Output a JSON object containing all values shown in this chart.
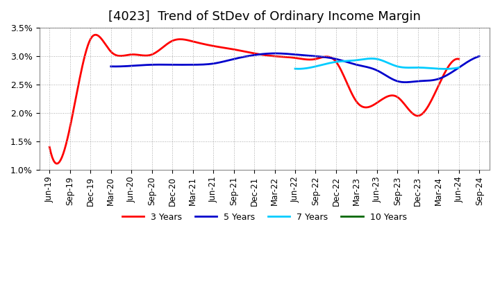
{
  "title": "[4023]  Trend of StDev of Ordinary Income Margin",
  "ylim": [
    0.01,
    0.035
  ],
  "yticks": [
    0.01,
    0.015,
    0.02,
    0.025,
    0.03,
    0.035
  ],
  "ytick_labels": [
    "1.0%",
    "1.5%",
    "2.0%",
    "2.5%",
    "3.0%",
    "3.5%"
  ],
  "x_labels": [
    "Jun-19",
    "Sep-19",
    "Dec-19",
    "Mar-20",
    "Jun-20",
    "Sep-20",
    "Dec-20",
    "Mar-21",
    "Jun-21",
    "Sep-21",
    "Dec-21",
    "Mar-22",
    "Jun-22",
    "Sep-22",
    "Dec-22",
    "Mar-23",
    "Jun-23",
    "Sep-23",
    "Dec-23",
    "Mar-24",
    "Jun-24",
    "Sep-24"
  ],
  "series": {
    "3 Years": {
      "color": "#ff0000",
      "values": [
        0.014,
        0.0175,
        0.033,
        0.0308,
        0.0303,
        0.0303,
        0.0327,
        0.0326,
        0.0318,
        0.0312,
        0.0305,
        0.03,
        0.0297,
        0.0295,
        0.029,
        0.022,
        0.0218,
        0.0228,
        0.0195,
        0.0248,
        0.0295,
        null
      ]
    },
    "5 Years": {
      "color": "#0000cc",
      "values": [
        null,
        null,
        null,
        0.0282,
        0.0283,
        0.0285,
        0.0285,
        0.0285,
        0.0287,
        0.0295,
        0.0302,
        0.0305,
        0.0303,
        0.03,
        0.0295,
        0.0285,
        0.0275,
        0.0256,
        0.0256,
        0.026,
        0.028,
        0.03
      ]
    },
    "7 Years": {
      "color": "#00ccff",
      "values": [
        null,
        null,
        null,
        null,
        null,
        null,
        null,
        null,
        null,
        null,
        null,
        null,
        0.0278,
        0.0282,
        0.029,
        0.0293,
        0.0295,
        0.0282,
        0.028,
        0.0278,
        0.028,
        null
      ]
    },
    "10 Years": {
      "color": "#006600",
      "values": [
        null,
        null,
        null,
        null,
        null,
        null,
        null,
        null,
        null,
        null,
        null,
        null,
        null,
        null,
        null,
        null,
        null,
        null,
        null,
        null,
        null,
        null
      ]
    }
  },
  "legend_order": [
    "3 Years",
    "5 Years",
    "7 Years",
    "10 Years"
  ],
  "background_color": "#ffffff",
  "grid_color": "#aaaaaa",
  "title_fontsize": 13,
  "tick_fontsize": 9
}
